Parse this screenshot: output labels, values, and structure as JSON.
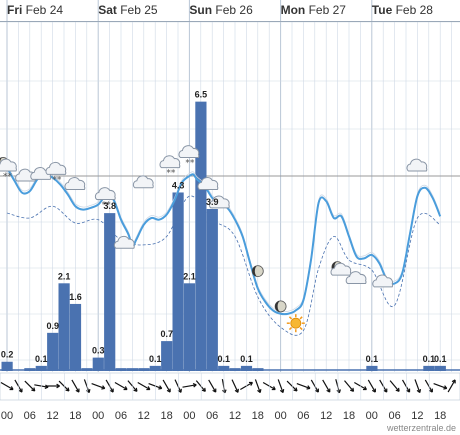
{
  "days": [
    {
      "weekday": "Fri",
      "date": "Feb 24"
    },
    {
      "weekday": "Sat",
      "date": "Feb 25"
    },
    {
      "weekday": "Sun",
      "date": "Feb 26"
    },
    {
      "weekday": "Mon",
      "date": "Feb 27"
    },
    {
      "weekday": "Tue",
      "date": "Feb 28"
    }
  ],
  "credit": "wetterzentrale.de",
  "colors": {
    "bars": "#4a72b0",
    "temp_line": "#4a9ddc",
    "band": "#4a72b0",
    "grid": "#cfd9e6",
    "freezing_line": "#999999",
    "arrows": "#111111"
  },
  "chart_data": {
    "type": "bar",
    "x_unit": "hours from Fri Feb 24 00:00",
    "x_tick_labels": [
      "00",
      "06",
      "12",
      "18",
      "00",
      "06",
      "12",
      "18",
      "00",
      "06",
      "12",
      "18",
      "00",
      "06",
      "12",
      "18",
      "00",
      "06",
      "12",
      "18"
    ],
    "grid": true,
    "precipitation": [
      {
        "x": 0,
        "value": 0.2
      },
      {
        "x": 6,
        "value": 0.0
      },
      {
        "x": 9,
        "value": 0.1
      },
      {
        "x": 12,
        "value": 0.9
      },
      {
        "x": 15,
        "value": 2.1
      },
      {
        "x": 18,
        "value": 1.6
      },
      {
        "x": 21,
        "value": 0.0
      },
      {
        "x": 24,
        "value": 0.3
      },
      {
        "x": 27,
        "value": 3.8
      },
      {
        "x": 30,
        "value": 0.0
      },
      {
        "x": 33,
        "value": 0.0
      },
      {
        "x": 36,
        "value": 0.0
      },
      {
        "x": 39,
        "value": 0.1
      },
      {
        "x": 42,
        "value": 0.7
      },
      {
        "x": 45,
        "value": 4.3
      },
      {
        "x": 48,
        "value": 2.1
      },
      {
        "x": 51,
        "value": 6.5
      },
      {
        "x": 54,
        "value": 3.9
      },
      {
        "x": 57,
        "value": 0.1
      },
      {
        "x": 60,
        "value": 0.0
      },
      {
        "x": 63,
        "value": 0.1
      },
      {
        "x": 66,
        "value": 0.0
      },
      {
        "x": 96,
        "value": 0.1
      },
      {
        "x": 111,
        "value": 0.1
      },
      {
        "x": 114,
        "value": 0.1
      }
    ],
    "precip_ylim": [
      0,
      7
    ],
    "temperature": [
      [
        0,
        0.5
      ],
      [
        2,
        -0.3
      ],
      [
        4,
        -1.0
      ],
      [
        6,
        -0.9
      ],
      [
        8,
        -0.2
      ],
      [
        10,
        0.1
      ],
      [
        12,
        -0.1
      ],
      [
        14,
        -0.5
      ],
      [
        16,
        -1.1
      ],
      [
        18,
        -1.8
      ],
      [
        20,
        -2.0
      ],
      [
        22,
        -1.9
      ],
      [
        24,
        -1.7
      ],
      [
        26,
        -1.2
      ],
      [
        28,
        -1.4
      ],
      [
        30,
        -2.6
      ],
      [
        32,
        -3.5
      ],
      [
        33,
        -4.2
      ],
      [
        34,
        -3.8
      ],
      [
        36,
        -2.9
      ],
      [
        38,
        -2.5
      ],
      [
        40,
        -2.6
      ],
      [
        42,
        -2.3
      ],
      [
        44,
        -1.5
      ],
      [
        46,
        -0.4
      ],
      [
        48,
        0.0
      ],
      [
        49,
        0.1
      ],
      [
        50,
        -0.2
      ],
      [
        52,
        -0.6
      ],
      [
        54,
        -1.3
      ],
      [
        56,
        -1.7
      ],
      [
        58,
        -1.9
      ],
      [
        60,
        -2.6
      ],
      [
        62,
        -3.6
      ],
      [
        64,
        -5.2
      ],
      [
        66,
        -6.7
      ],
      [
        68,
        -7.5
      ],
      [
        70,
        -8.0
      ],
      [
        72,
        -8.2
      ],
      [
        74,
        -8.2
      ],
      [
        76,
        -8.0
      ],
      [
        78,
        -7.4
      ],
      [
        80,
        -5.0
      ],
      [
        82,
        -1.6
      ],
      [
        84,
        -1.5
      ],
      [
        86,
        -2.5
      ],
      [
        88,
        -2.4
      ],
      [
        90,
        -3.6
      ],
      [
        92,
        -4.8
      ],
      [
        94,
        -4.9
      ],
      [
        96,
        -4.7
      ],
      [
        98,
        -5.2
      ],
      [
        100,
        -6.2
      ],
      [
        102,
        -6.4
      ],
      [
        104,
        -5.8
      ],
      [
        106,
        -3.5
      ],
      [
        108,
        -1.2
      ],
      [
        110,
        -0.7
      ],
      [
        112,
        -1.3
      ],
      [
        114,
        -2.4
      ]
    ],
    "temperature_band": [
      [
        0,
        -2.2
      ],
      [
        6,
        -2.5
      ],
      [
        12,
        -1.8
      ],
      [
        18,
        -2.8
      ],
      [
        24,
        -2.6
      ],
      [
        30,
        -3.8
      ],
      [
        36,
        -4.1
      ],
      [
        42,
        -3.6
      ],
      [
        48,
        -1.2
      ],
      [
        54,
        -2.6
      ],
      [
        60,
        -3.6
      ],
      [
        66,
        -7.2
      ],
      [
        72,
        -9.0
      ],
      [
        78,
        -9.2
      ],
      [
        82,
        -5.5
      ],
      [
        86,
        -3.6
      ],
      [
        90,
        -5.0
      ],
      [
        96,
        -5.6
      ],
      [
        102,
        -7.7
      ],
      [
        108,
        -2.5
      ],
      [
        114,
        -2.9
      ]
    ],
    "temp_ylim": [
      -11,
      1.8
    ],
    "freezing_level": 0,
    "wind_directions_deg": [
      120,
      150,
      135,
      100,
      90,
      135,
      150,
      160,
      110,
      150,
      120,
      140,
      120,
      110,
      150,
      155,
      80,
      140,
      150,
      170,
      155,
      60,
      160,
      120,
      160,
      135,
      110,
      150,
      150,
      165,
      140,
      120,
      150,
      150,
      140,
      150,
      160,
      150,
      110,
      30
    ],
    "weather_icons": [
      {
        "x": 0,
        "temp": 0.3,
        "icon": "night-cloud-snow-icon"
      },
      {
        "x": 5,
        "temp": -0.3,
        "icon": "cloud-icon"
      },
      {
        "x": 9,
        "temp": -0.2,
        "icon": "cloud-icon"
      },
      {
        "x": 13,
        "temp": 0.1,
        "icon": "cloud-snow-icon"
      },
      {
        "x": 18,
        "temp": -0.8,
        "icon": "cloud-icon"
      },
      {
        "x": 26,
        "temp": -1.4,
        "icon": "cloud-snow-icon"
      },
      {
        "x": 31,
        "temp": -4.3,
        "icon": "cloud-icon"
      },
      {
        "x": 36,
        "temp": -0.7,
        "icon": "cloud-icon"
      },
      {
        "x": 43,
        "temp": 0.5,
        "icon": "cloud-snow-icon"
      },
      {
        "x": 48,
        "temp": 1.1,
        "icon": "cloud-snow-icon"
      },
      {
        "x": 53,
        "temp": -0.8,
        "icon": "cloud-icon"
      },
      {
        "x": 56,
        "temp": -1.9,
        "icon": "cloud-icon"
      },
      {
        "x": 66,
        "temp": -5.9,
        "icon": "moon-icon"
      },
      {
        "x": 72,
        "temp": -8.0,
        "icon": "moon-icon"
      },
      {
        "x": 76,
        "temp": -9.0,
        "icon": "sun-cloud-icon"
      },
      {
        "x": 88,
        "temp": -5.9,
        "icon": "night-cloud-icon"
      },
      {
        "x": 92,
        "temp": -6.4,
        "icon": "cloud-icon"
      },
      {
        "x": 99,
        "temp": -6.6,
        "icon": "cloud-icon"
      },
      {
        "x": 108,
        "temp": 0.3,
        "icon": "cloud-icon"
      }
    ]
  }
}
